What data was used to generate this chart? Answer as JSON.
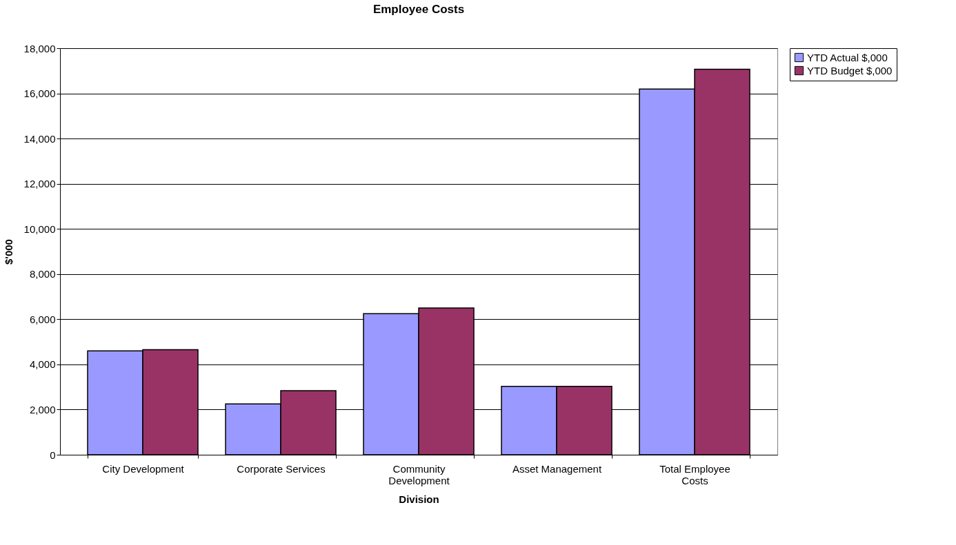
{
  "chart_data": {
    "type": "bar",
    "title": "Employee Costs",
    "xlabel": "Division",
    "ylabel": "$'000",
    "categories": [
      "City Development",
      "Corporate Services",
      "Community Development",
      "Asset Management",
      "Total Employee Costs"
    ],
    "series": [
      {
        "name": "YTD Actual $,000",
        "color": "#9999ff",
        "values": [
          4600,
          2250,
          6250,
          3030,
          16190
        ]
      },
      {
        "name": "YTD Budget $,000",
        "color": "#993366",
        "values": [
          4650,
          2840,
          6500,
          3030,
          17070
        ]
      }
    ],
    "ylim": [
      0,
      18000
    ],
    "yticks": [
      0,
      {
        "value": 2000,
        "label": "2,000"
      },
      {
        "value": 4000,
        "label": "4,000"
      },
      {
        "value": 6000,
        "label": "6,000"
      },
      {
        "value": 8000,
        "label": "8,000"
      },
      {
        "value": 10000,
        "label": "10,000"
      },
      {
        "value": 12000,
        "label": "12,000"
      },
      {
        "value": 14000,
        "label": "14,000"
      },
      {
        "value": 16000,
        "label": "16,000"
      },
      {
        "value": 18000,
        "label": "18,000"
      }
    ],
    "grid": "y",
    "legend": "right"
  }
}
